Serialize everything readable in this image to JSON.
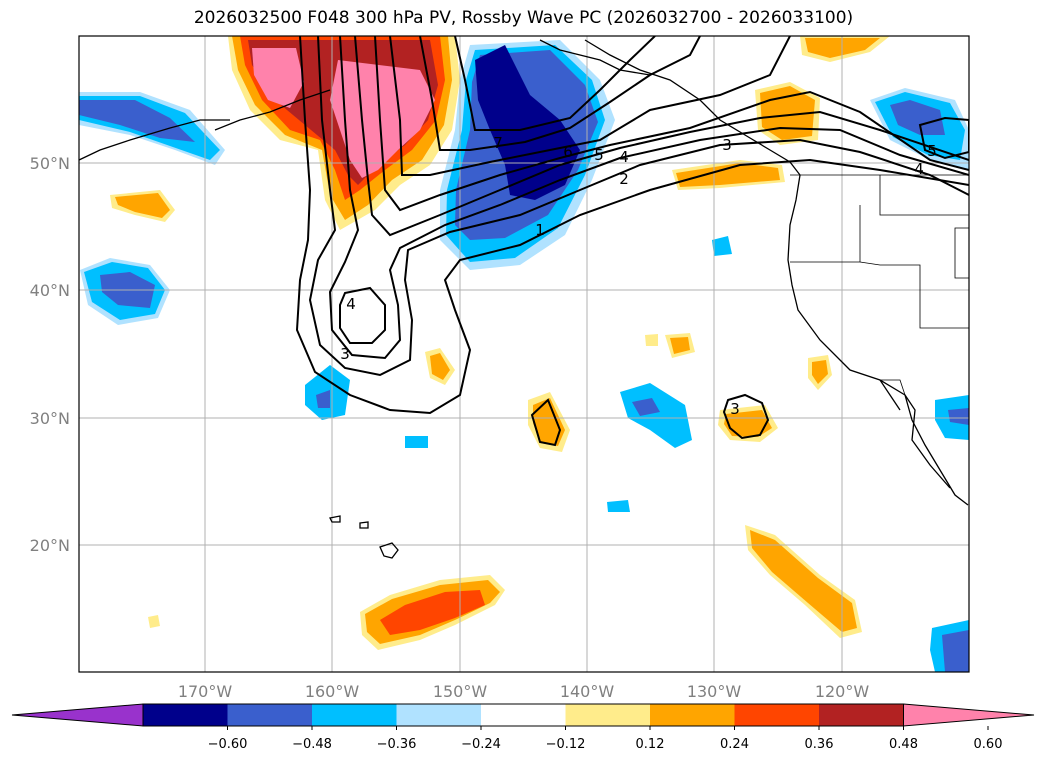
{
  "title": "2026032500 F048 300 hPa PV, Rossby Wave PC (2026032700 - 2026033100)",
  "map": {
    "lat_labels": [
      "50°N",
      "40°N",
      "30°N",
      "20°N"
    ],
    "lon_labels": [
      "170°W",
      "160°W",
      "150°W",
      "140°W",
      "130°W",
      "120°W"
    ],
    "contour_labels": [
      "1",
      "2",
      "3",
      "4",
      "5",
      "6",
      "7",
      "3",
      "4",
      "3",
      "4",
      "5"
    ]
  },
  "colorbar": {
    "ticks": [
      "−0.60",
      "−0.48",
      "−0.36",
      "−0.24",
      "−0.12",
      "0.12",
      "0.24",
      "0.36",
      "0.48",
      "0.60"
    ],
    "colors": [
      "#9932cc",
      "#00008b",
      "#3a5fcd",
      "#00bfff",
      "#b0e2ff",
      "#ffffff",
      "#ffec8b",
      "#ffa500",
      "#ff4500",
      "#b22222",
      "#ff82ab"
    ]
  }
}
